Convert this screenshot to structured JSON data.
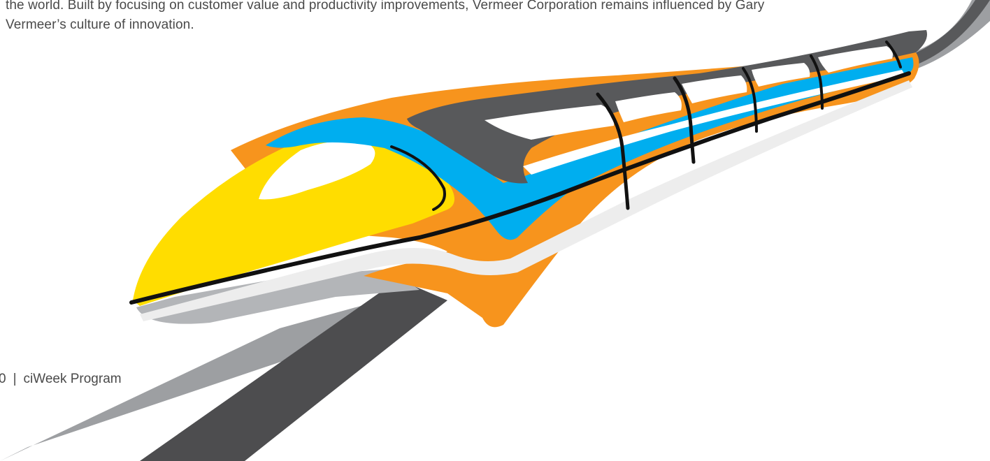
{
  "body_text": {
    "line1": "the world. Built by focusing on customer value and productivity improvements, Vermeer Corporation remains influenced by Gary",
    "line2": "Vermeer’s culture of innovation."
  },
  "footer": {
    "page_number": "0",
    "separator": "|",
    "program_name": "ciWeek Program"
  },
  "illustration": {
    "subject": "monorail-train-icon",
    "colors": {
      "nose_yellow": "#FFDD00",
      "body_orange": "#F7941D",
      "stripe_blue": "#00AEEF",
      "roof_dark": "#58595B",
      "track_dark": "#4D4D4F",
      "track_light": "#9D9FA2",
      "shadow_gray": "#B3B5B8",
      "outline_black": "#111111",
      "white": "#FFFFFF",
      "light_gray": "#EDEDED"
    }
  }
}
